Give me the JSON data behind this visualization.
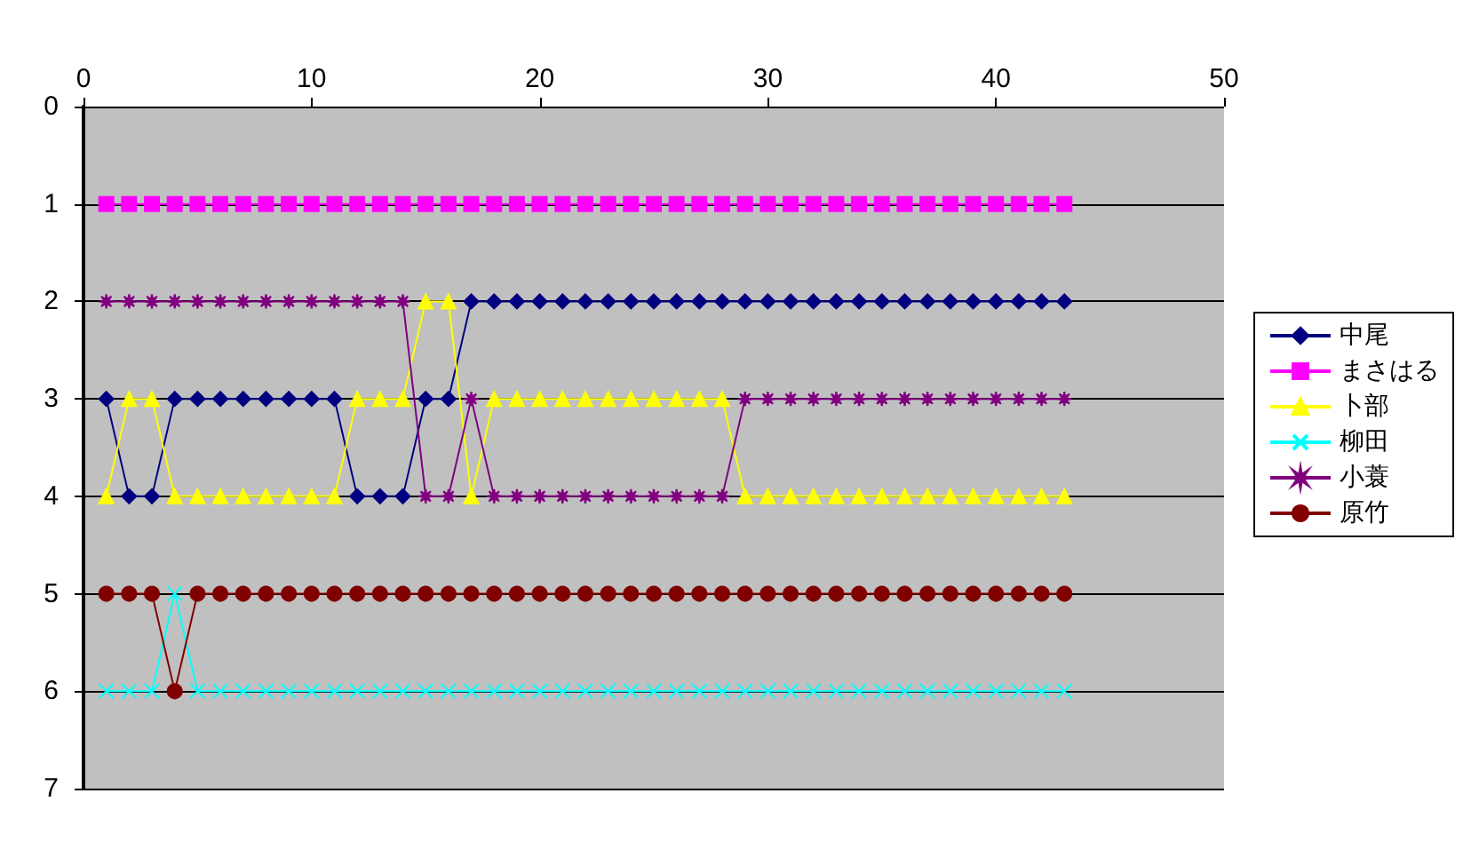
{
  "chart_data": {
    "type": "line",
    "x": [
      1,
      2,
      3,
      4,
      5,
      6,
      7,
      8,
      9,
      10,
      11,
      12,
      13,
      14,
      15,
      16,
      17,
      18,
      19,
      20,
      21,
      22,
      23,
      24,
      25,
      26,
      27,
      28,
      29,
      30,
      31,
      32,
      33,
      34,
      35,
      36,
      37,
      38,
      39,
      40,
      41,
      42,
      43
    ],
    "series": [
      {
        "name": "中尾",
        "color": "#000080",
        "marker": "diamond",
        "values": [
          3,
          4,
          4,
          3,
          3,
          3,
          3,
          3,
          3,
          3,
          3,
          4,
          4,
          4,
          3,
          3,
          2,
          2,
          2,
          2,
          2,
          2,
          2,
          2,
          2,
          2,
          2,
          2,
          2,
          2,
          2,
          2,
          2,
          2,
          2,
          2,
          2,
          2,
          2,
          2,
          2,
          2,
          2
        ]
      },
      {
        "name": "まさはる",
        "color": "#ff00ff",
        "marker": "square",
        "values": [
          1,
          1,
          1,
          1,
          1,
          1,
          1,
          1,
          1,
          1,
          1,
          1,
          1,
          1,
          1,
          1,
          1,
          1,
          1,
          1,
          1,
          1,
          1,
          1,
          1,
          1,
          1,
          1,
          1,
          1,
          1,
          1,
          1,
          1,
          1,
          1,
          1,
          1,
          1,
          1,
          1,
          1,
          1
        ]
      },
      {
        "name": "卜部",
        "color": "#ffff00",
        "marker": "triangle",
        "values": [
          4,
          3,
          3,
          4,
          4,
          4,
          4,
          4,
          4,
          4,
          4,
          3,
          3,
          3,
          2,
          2,
          4,
          3,
          3,
          3,
          3,
          3,
          3,
          3,
          3,
          3,
          3,
          3,
          4,
          4,
          4,
          4,
          4,
          4,
          4,
          4,
          4,
          4,
          4,
          4,
          4,
          4,
          4
        ]
      },
      {
        "name": "柳田",
        "color": "#00ffff",
        "marker": "cross",
        "values": [
          6,
          6,
          6,
          5,
          6,
          6,
          6,
          6,
          6,
          6,
          6,
          6,
          6,
          6,
          6,
          6,
          6,
          6,
          6,
          6,
          6,
          6,
          6,
          6,
          6,
          6,
          6,
          6,
          6,
          6,
          6,
          6,
          6,
          6,
          6,
          6,
          6,
          6,
          6,
          6,
          6,
          6,
          6
        ]
      },
      {
        "name": "小蓑",
        "color": "#800080",
        "marker": "star",
        "values": [
          2,
          2,
          2,
          2,
          2,
          2,
          2,
          2,
          2,
          2,
          2,
          2,
          2,
          2,
          4,
          4,
          3,
          4,
          4,
          4,
          4,
          4,
          4,
          4,
          4,
          4,
          4,
          4,
          3,
          3,
          3,
          3,
          3,
          3,
          3,
          3,
          3,
          3,
          3,
          3,
          3,
          3,
          3
        ]
      },
      {
        "name": "原竹",
        "color": "#800000",
        "marker": "circle",
        "values": [
          5,
          5,
          5,
          6,
          5,
          5,
          5,
          5,
          5,
          5,
          5,
          5,
          5,
          5,
          5,
          5,
          5,
          5,
          5,
          5,
          5,
          5,
          5,
          5,
          5,
          5,
          5,
          5,
          5,
          5,
          5,
          5,
          5,
          5,
          5,
          5,
          5,
          5,
          5,
          5,
          5,
          5,
          5
        ]
      }
    ],
    "xlim": [
      0,
      50
    ],
    "xticks": [
      0,
      10,
      20,
      30,
      40,
      50
    ],
    "ylim": [
      7,
      0
    ],
    "yticks": [
      0,
      1,
      2,
      3,
      4,
      5,
      6,
      7
    ],
    "grid": "y",
    "legend": "right"
  }
}
